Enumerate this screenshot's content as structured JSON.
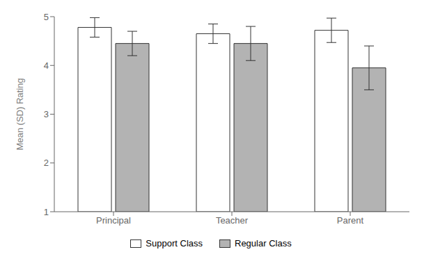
{
  "chart_data": {
    "type": "bar",
    "categories": [
      "Principal",
      "Teacher",
      "Parent"
    ],
    "series": [
      {
        "name": "Support Class",
        "color": "#ffffff",
        "values": [
          4.78,
          4.65,
          4.72
        ],
        "errors": [
          0.2,
          0.2,
          0.25
        ]
      },
      {
        "name": "Regular Class",
        "color": "#b3b3b3",
        "values": [
          4.45,
          4.45,
          3.95
        ],
        "errors": [
          0.25,
          0.35,
          0.45
        ]
      }
    ],
    "ylabel": "Mean (SD) Rating",
    "ylim": [
      1,
      5
    ],
    "yticks": [
      1,
      2,
      3,
      4,
      5
    ],
    "grid": false,
    "legend": "bottom"
  }
}
